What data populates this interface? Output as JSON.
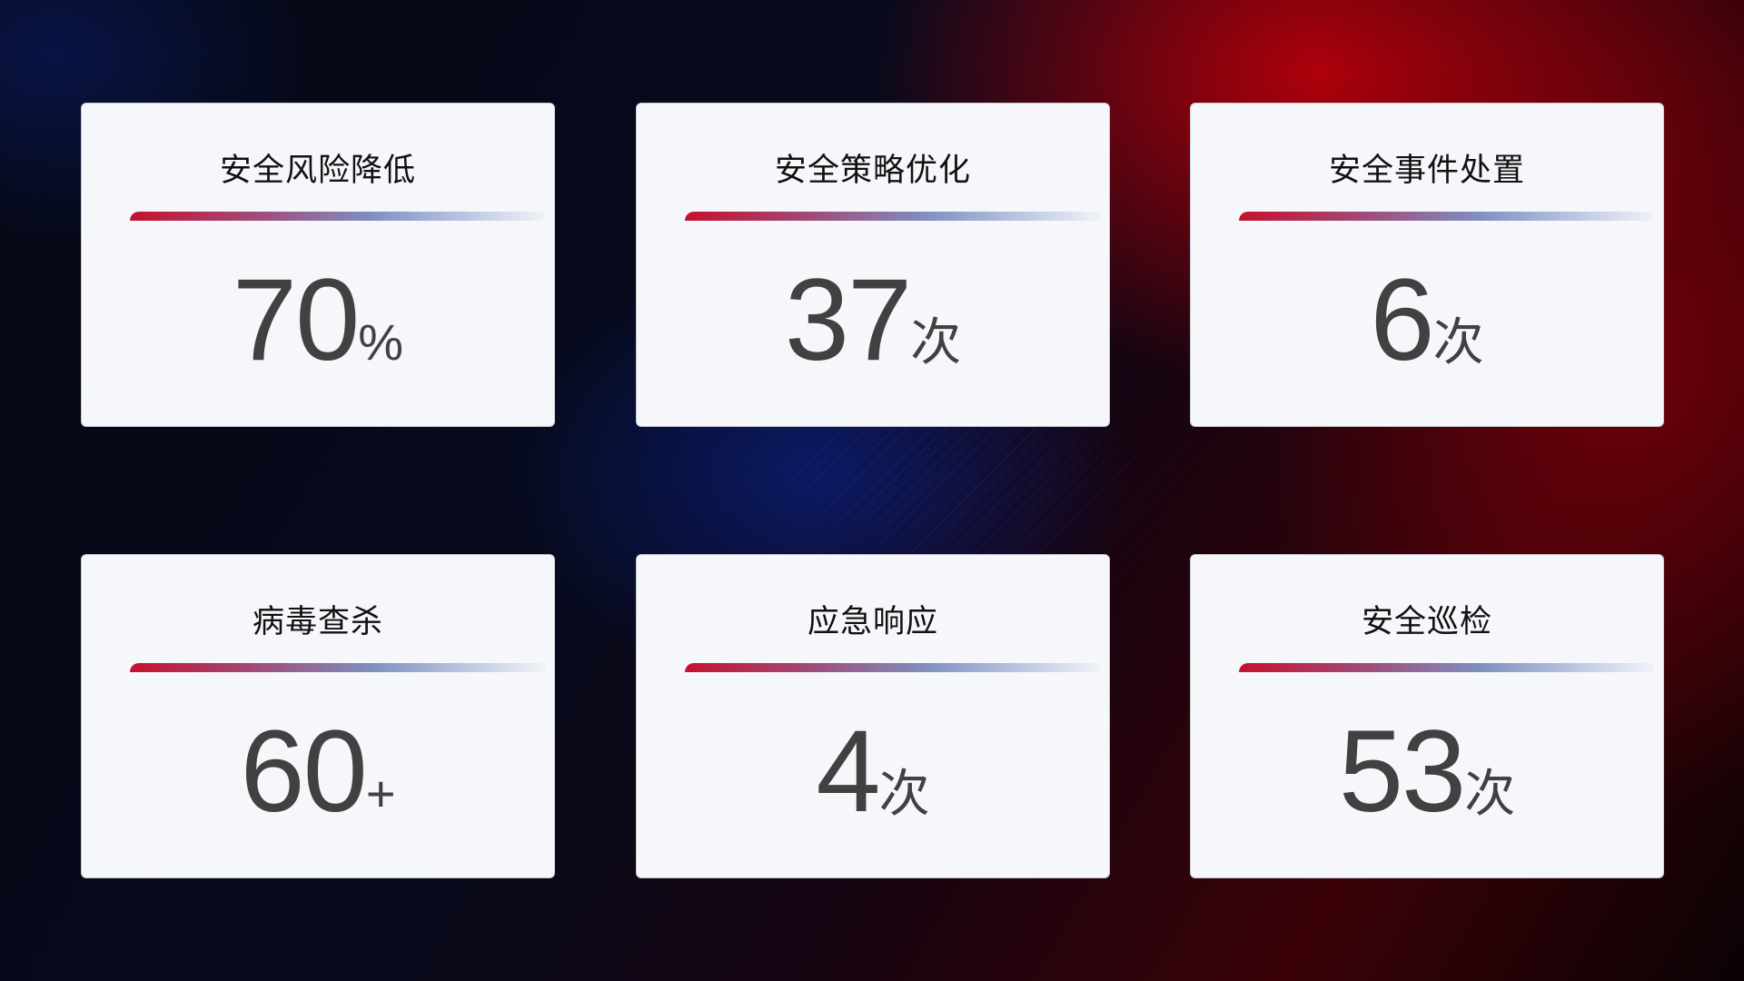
{
  "cards": [
    {
      "title": "安全风险降低",
      "value": "70",
      "unit": "%"
    },
    {
      "title": "安全策略优化",
      "value": "37",
      "unit": "次"
    },
    {
      "title": "安全事件处置",
      "value": "6",
      "unit": "次"
    },
    {
      "title": "病毒查杀",
      "value": "60",
      "unit": "+"
    },
    {
      "title": "应急响应",
      "value": "4",
      "unit": "次"
    },
    {
      "title": "安全巡检",
      "value": "53",
      "unit": "次"
    }
  ],
  "colors": {
    "accent_red": "#c8102e",
    "accent_blue": "#7f8fc0",
    "value_text": "#414141",
    "card_bg": "#f6f7fb"
  }
}
